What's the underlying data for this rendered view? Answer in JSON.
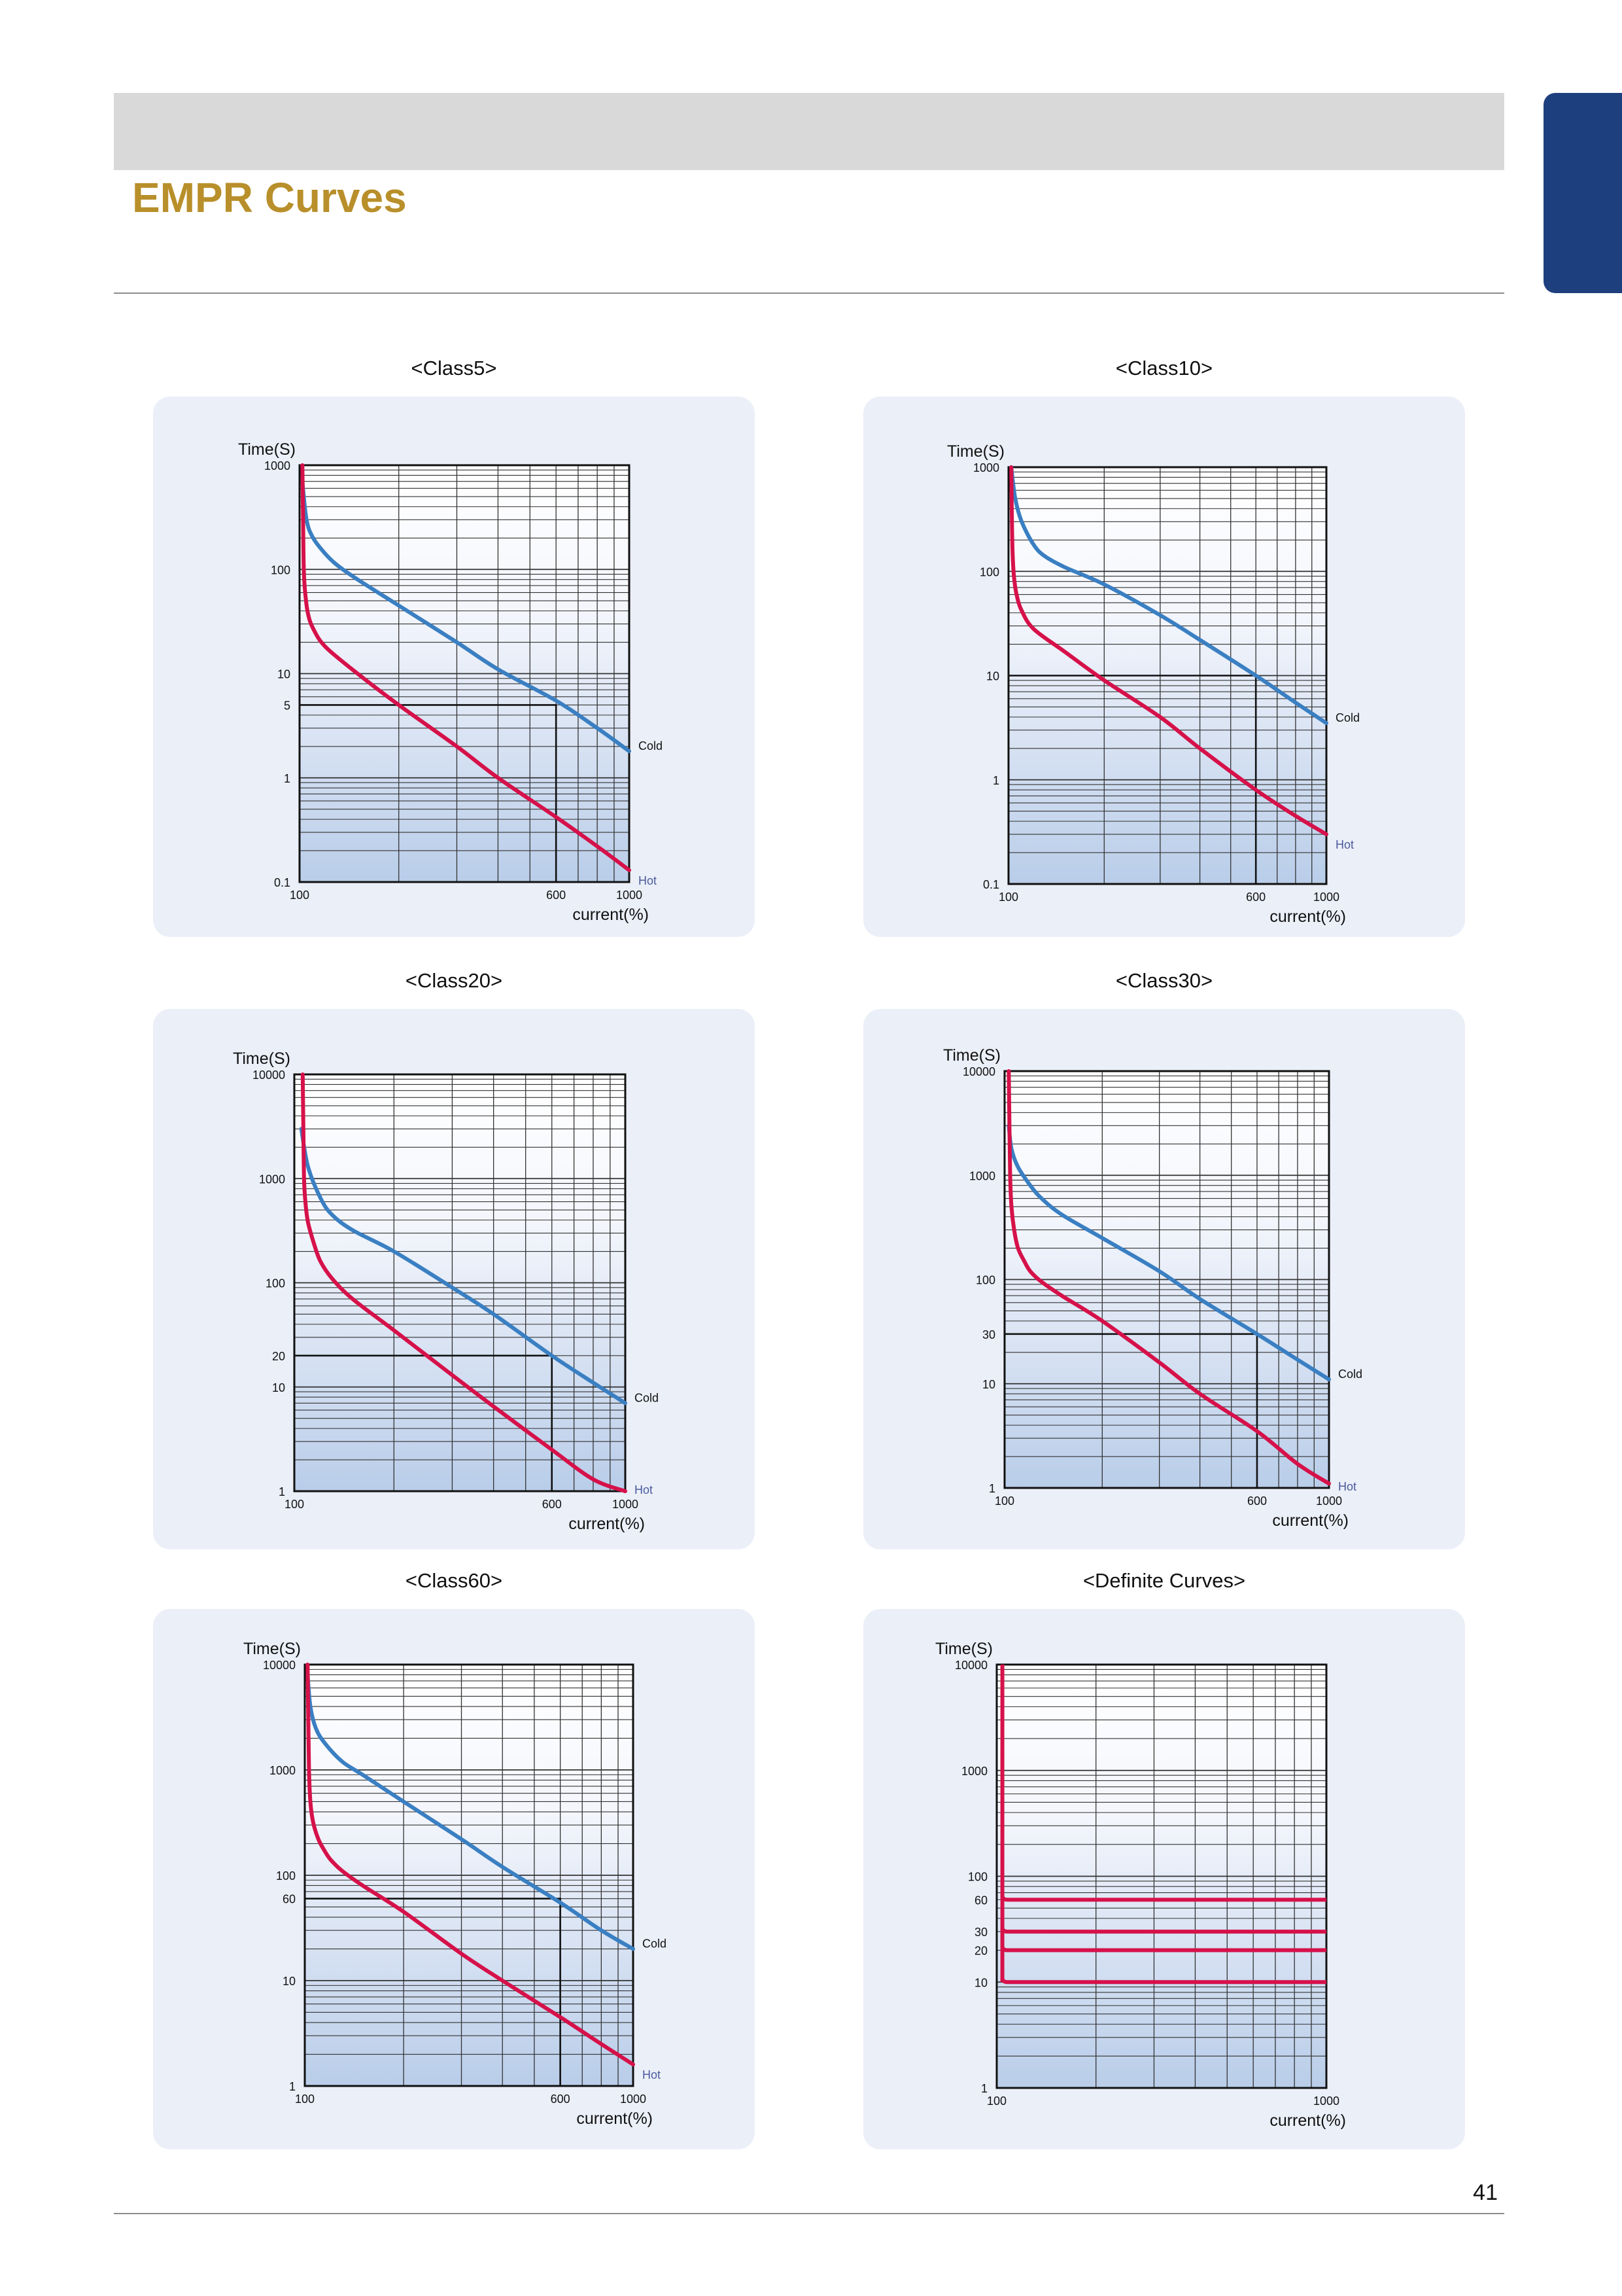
{
  "page": {
    "title": "EMPR Curves",
    "page_number": "41",
    "colors": {
      "header_band": "#d9d9d9",
      "side_tab": "#1e3f7e",
      "title": "#b88f2a",
      "panel": "#ebeff8",
      "cold": "#3a7fc2",
      "hot": "#d6114a",
      "hot_label": "#4a5b9c"
    }
  },
  "chart_data": [
    {
      "type": "line",
      "title": "<Class5>",
      "ylabel": "Time(S)",
      "xlabel": "current(%)",
      "xscale": "log",
      "yscale": "log",
      "xlim": [
        100,
        1000
      ],
      "ylim": [
        0.1,
        1000
      ],
      "x_ticks": [
        "100",
        "600",
        "1000"
      ],
      "y_ticks": [
        "0.1",
        "1",
        "5",
        "10",
        "100",
        "1000"
      ],
      "reference": {
        "x": 600,
        "y": 5
      },
      "series": [
        {
          "name": "Cold",
          "x": [
            102,
            105,
            110,
            120,
            130,
            150,
            200,
            300,
            400,
            600,
            800,
            1000
          ],
          "y": [
            700,
            300,
            200,
            140,
            110,
            80,
            45,
            20,
            11,
            5.5,
            3,
            1.8
          ]
        },
        {
          "name": "Hot",
          "x": [
            102,
            102.5,
            103,
            104,
            106,
            110,
            120,
            150,
            200,
            300,
            400,
            600,
            800,
            1000
          ],
          "y": [
            1000,
            300,
            100,
            60,
            38,
            27,
            18,
            10,
            5,
            2,
            1,
            0.42,
            0.22,
            0.13
          ]
        }
      ]
    },
    {
      "type": "line",
      "title": "<Class10>",
      "ylabel": "Time(S)",
      "xlabel": "current(%)",
      "xscale": "log",
      "yscale": "log",
      "xlim": [
        100,
        1000
      ],
      "ylim": [
        0.1,
        1000
      ],
      "x_ticks": [
        "100",
        "600",
        "1000"
      ],
      "y_ticks": [
        "0.1",
        "1",
        "10",
        "100",
        "1000"
      ],
      "reference": {
        "x": 600,
        "y": 10
      },
      "series": [
        {
          "name": "Cold",
          "x": [
            102,
            105,
            110,
            120,
            130,
            150,
            200,
            300,
            400,
            600,
            800,
            1000
          ],
          "y": [
            1000,
            500,
            300,
            180,
            140,
            110,
            75,
            38,
            22,
            10,
            5.5,
            3.5
          ]
        },
        {
          "name": "Hot",
          "x": [
            102,
            102.5,
            103,
            104,
            106,
            110,
            120,
            150,
            200,
            300,
            400,
            600,
            800,
            1000
          ],
          "y": [
            1000,
            300,
            150,
            90,
            60,
            42,
            28,
            17,
            9,
            4,
            2,
            0.8,
            0.45,
            0.3
          ]
        }
      ]
    },
    {
      "type": "line",
      "title": "<Class20>",
      "ylabel": "Time(S)",
      "xlabel": "current(%)",
      "xscale": "log",
      "yscale": "log",
      "xlim": [
        100,
        1000
      ],
      "ylim": [
        1,
        10000
      ],
      "x_ticks": [
        "100",
        "600",
        "1000"
      ],
      "y_ticks": [
        "1",
        "10",
        "20",
        "100",
        "1000",
        "10000"
      ],
      "reference": {
        "x": 600,
        "y": 20
      },
      "series": [
        {
          "name": "Cold",
          "x": [
            105,
            110,
            120,
            130,
            150,
            200,
            300,
            400,
            600,
            800,
            1000
          ],
          "y": [
            3000,
            1300,
            650,
            450,
            320,
            200,
            90,
            50,
            20,
            11,
            7
          ]
        },
        {
          "name": "Hot",
          "x": [
            106,
            106.5,
            107,
            108,
            110,
            115,
            120,
            130,
            150,
            200,
            300,
            400,
            600,
            800,
            1000
          ],
          "y": [
            10000,
            3000,
            1000,
            600,
            380,
            230,
            160,
            110,
            70,
            35,
            13,
            6.5,
            2.5,
            1.3,
            1
          ]
        }
      ]
    },
    {
      "type": "line",
      "title": "<Class30>",
      "ylabel": "Time(S)",
      "xlabel": "current(%)",
      "xscale": "log",
      "yscale": "log",
      "xlim": [
        100,
        1000
      ],
      "ylim": [
        1,
        10000
      ],
      "x_ticks": [
        "100",
        "600",
        "1000"
      ],
      "y_ticks": [
        "1",
        "10",
        "30",
        "100",
        "1000",
        "10000"
      ],
      "reference": {
        "x": 600,
        "y": 30
      },
      "series": [
        {
          "name": "Cold",
          "x": [
            103,
            105,
            110,
            120,
            130,
            150,
            200,
            300,
            400,
            600,
            800,
            1000
          ],
          "y": [
            3000,
            1800,
            1200,
            800,
            600,
            420,
            250,
            120,
            65,
            30,
            17,
            11
          ]
        },
        {
          "name": "Hot",
          "x": [
            103,
            103.5,
            104,
            105,
            107,
            110,
            115,
            120,
            130,
            150,
            200,
            300,
            400,
            600,
            800,
            1000
          ],
          "y": [
            10000,
            3000,
            1000,
            500,
            300,
            200,
            150,
            120,
            95,
            70,
            40,
            16,
            8,
            3.5,
            1.7,
            1.1
          ]
        }
      ]
    },
    {
      "type": "line",
      "title": "<Class60>",
      "ylabel": "Time(S)",
      "xlabel": "current(%)",
      "xscale": "log",
      "yscale": "log",
      "xlim": [
        100,
        1000
      ],
      "ylim": [
        1,
        10000
      ],
      "x_ticks": [
        "100",
        "600",
        "1000"
      ],
      "y_ticks": [
        "1",
        "10",
        "60",
        "100",
        "1000",
        "10000"
      ],
      "reference": {
        "x": 600,
        "y": 60
      },
      "series": [
        {
          "name": "Cold",
          "x": [
            102,
            104,
            108,
            115,
            130,
            150,
            200,
            300,
            400,
            600,
            800,
            1000
          ],
          "y": [
            8000,
            4000,
            2500,
            1800,
            1200,
            900,
            500,
            220,
            120,
            55,
            30,
            20
          ]
        },
        {
          "name": "Hot",
          "x": [
            102,
            102.5,
            103,
            104,
            106,
            110,
            115,
            120,
            130,
            150,
            200,
            300,
            400,
            600,
            800,
            1000
          ],
          "y": [
            10000,
            3000,
            1000,
            500,
            320,
            220,
            170,
            140,
            110,
            80,
            45,
            18,
            10,
            4.5,
            2.5,
            1.6
          ]
        }
      ]
    },
    {
      "type": "line",
      "title": "<Definite Curves>",
      "ylabel": "Time(S)",
      "xlabel": "current(%)",
      "xscale": "log",
      "yscale": "log",
      "xlim": [
        100,
        1000
      ],
      "ylim": [
        1,
        10000
      ],
      "x_ticks": [
        "100",
        "1000"
      ],
      "y_ticks": [
        "1",
        "10",
        "20",
        "30",
        "60",
        "100",
        "1000",
        "10000"
      ],
      "definite": {
        "pickup_x": 104,
        "levels": [
          60,
          30,
          20,
          10
        ]
      },
      "series": []
    }
  ]
}
